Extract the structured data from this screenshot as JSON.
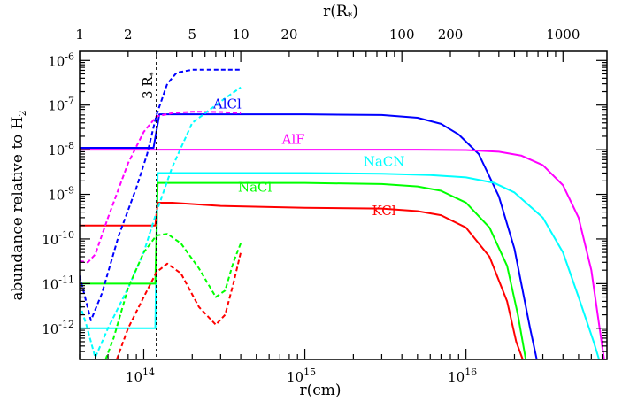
{
  "chart_data": {
    "type": "line",
    "title": "",
    "xlabel": "r(cm)",
    "top_xlabel": "r(R",
    "top_xlabel_sub": "*",
    "top_xlabel_close": ")",
    "ylabel": "abundance relative to H",
    "ylabel_sub": "2",
    "x_scale": "log",
    "y_scale": "log",
    "xlim": [
      40000000000000.0,
      7.5e+16
    ],
    "ylim": [
      2e-13,
      1.6e-06
    ],
    "grid": false,
    "legend": "inline labels next to curves",
    "x_ticks": [
      {
        "base": "10",
        "exp": "14",
        "value": 100000000000000.0
      },
      {
        "base": "10",
        "exp": "15",
        "value": 1000000000000000.0
      },
      {
        "base": "10",
        "exp": "16",
        "value": 1e+16
      }
    ],
    "top_ticks": [
      {
        "label": "1",
        "value": 1
      },
      {
        "label": "2",
        "value": 2
      },
      {
        "label": "5",
        "value": 5
      },
      {
        "label": "10",
        "value": 10
      },
      {
        "label": "20",
        "value": 20
      },
      {
        "label": "100",
        "value": 100
      },
      {
        "label": "200",
        "value": 200
      },
      {
        "label": "1000",
        "value": 1000
      }
    ],
    "y_ticks": [
      {
        "base": "10",
        "exp": "-12",
        "value": 1e-12
      },
      {
        "base": "10",
        "exp": "-11",
        "value": 1e-11
      },
      {
        "base": "10",
        "exp": "-10",
        "value": 1e-10
      },
      {
        "base": "10",
        "exp": "-9",
        "value": 1e-09
      },
      {
        "base": "10",
        "exp": "-8",
        "value": 1e-08
      },
      {
        "base": "10",
        "exp": "-7",
        "value": 1e-07
      },
      {
        "base": "10",
        "exp": "-6",
        "value": 1e-06
      }
    ],
    "annotation": {
      "text": "3 R",
      "sub": "*",
      "x": 120000000000000.0
    },
    "series": [
      {
        "name": "AlCl",
        "color": "#0000ff",
        "style": "solid",
        "label_at": [
          330000000000000.0,
          8.5e-08
        ],
        "x": [
          40000000000000.0,
          115000000000000.0,
          125000000000000.0,
          300000000000000.0,
          1000000000000000.0,
          3000000000000000.0,
          5000000000000000.0,
          7000000000000000.0,
          9000000000000000.0,
          1.2e+16,
          1.6e+16,
          2e+16,
          2.5e+16,
          2.75e+16
        ],
        "y": [
          1.1e-08,
          1.1e-08,
          6.2e-08,
          6.2e-08,
          6.2e-08,
          6e-08,
          5.2e-08,
          3.8e-08,
          2.2e-08,
          8e-09,
          9e-10,
          6e-11,
          1e-12,
          2e-13
        ]
      },
      {
        "name": "AlF",
        "color": "#ff00ff",
        "style": "solid",
        "label_at": [
          850000000000000.0,
          1.35e-08
        ],
        "x": [
          40000000000000.0,
          100000000000000.0,
          300000000000000.0,
          1000000000000000.0,
          5000000000000000.0,
          1e+16,
          1.6e+16,
          2.2e+16,
          3e+16,
          4e+16,
          5e+16,
          6e+16,
          7.2e+16
        ],
        "y": [
          1e-08,
          1e-08,
          1e-08,
          1e-08,
          1e-08,
          9.8e-09,
          9e-09,
          7.4e-09,
          4.5e-09,
          1.6e-09,
          3e-10,
          2e-11,
          2e-13
        ]
      },
      {
        "name": "NaCN",
        "color": "#00ffff",
        "style": "solid",
        "label_at": [
          3100000000000000.0,
          4.3e-09
        ],
        "x": [
          40000000000000.0,
          118000000000000.0,
          122000000000000.0,
          300000000000000.0,
          1000000000000000.0,
          3000000000000000.0,
          6000000000000000.0,
          1e+16,
          1.5e+16,
          2e+16,
          3e+16,
          4e+16,
          5e+16,
          6.2e+16,
          6.7e+16
        ],
        "y": [
          1e-12,
          1e-12,
          3e-09,
          3e-09,
          3e-09,
          2.9e-09,
          2.7e-09,
          2.4e-09,
          1.8e-09,
          1.1e-09,
          3e-10,
          5e-11,
          5e-12,
          5e-13,
          2e-13
        ]
      },
      {
        "name": "NaCl",
        "color": "#00ff00",
        "style": "solid",
        "label_at": [
          490000000000000.0,
          1.15e-09
        ],
        "x": [
          40000000000000.0,
          118000000000000.0,
          122000000000000.0,
          300000000000000.0,
          1000000000000000.0,
          3000000000000000.0,
          5000000000000000.0,
          7000000000000000.0,
          1e+16,
          1.4e+16,
          1.8e+16,
          2.1e+16,
          2.35e+16
        ],
        "y": [
          1e-11,
          1e-11,
          1.8e-09,
          1.8e-09,
          1.8e-09,
          1.7e-09,
          1.5e-09,
          1.2e-09,
          6.5e-10,
          1.8e-10,
          2.5e-11,
          2e-12,
          2e-13
        ]
      },
      {
        "name": "KCl",
        "color": "#ff0000",
        "style": "solid",
        "label_at": [
          3100000000000000.0,
          3.4e-10
        ],
        "x": [
          40000000000000.0,
          118000000000000.0,
          122000000000000.0,
          150000000000000.0,
          300000000000000.0,
          1000000000000000.0,
          3000000000000000.0,
          5000000000000000.0,
          7000000000000000.0,
          1e+16,
          1.4e+16,
          1.8e+16,
          2.05e+16,
          2.25e+16
        ],
        "y": [
          2e-10,
          2e-10,
          6.5e-10,
          6.5e-10,
          5.5e-10,
          5e-10,
          4.8e-10,
          4.2e-10,
          3.4e-10,
          1.8e-10,
          4e-11,
          4e-12,
          5e-13,
          2e-13
        ]
      },
      {
        "name": "",
        "color": "#0000ff",
        "style": "dashed",
        "x": [
          40000000000000.0,
          47000000000000.0,
          55000000000000.0,
          70000000000000.0,
          90000000000000.0,
          105000000000000.0,
          120000000000000.0,
          140000000000000.0,
          160000000000000.0,
          200000000000000.0,
          400000000000000.0
        ],
        "y": [
          1.5e-11,
          1.5e-12,
          6e-12,
          1.2e-10,
          1.4e-09,
          8e-09,
          6e-08,
          3e-07,
          5.3e-07,
          6.2e-07,
          6.2e-07
        ]
      },
      {
        "name": "",
        "color": "#ff00ff",
        "style": "dashed",
        "x": [
          40000000000000.0,
          45000000000000.0,
          50000000000000.0,
          60000000000000.0,
          80000000000000.0,
          100000000000000.0,
          120000000000000.0,
          150000000000000.0,
          200000000000000.0,
          300000000000000.0,
          400000000000000.0
        ],
        "y": [
          3.2e-11,
          3e-11,
          4.5e-11,
          3e-10,
          5e-09,
          2.5e-08,
          5.6e-08,
          6.6e-08,
          7.1e-08,
          7e-08,
          6.6e-08
        ]
      },
      {
        "name": "",
        "color": "#00ffff",
        "style": "dashed",
        "x": [
          40000000000000.0,
          44000000000000.0,
          50000000000000.0,
          60000000000000.0,
          80000000000000.0,
          100000000000000.0,
          120000000000000.0,
          150000000000000.0,
          200000000000000.0,
          300000000000000.0,
          400000000000000.0
        ],
        "y": [
          3.5e-12,
          1.2e-12,
          2.2e-13,
          1e-12,
          8e-12,
          5e-11,
          4e-10,
          4e-09,
          4e-08,
          1.2e-07,
          2.5e-07
        ]
      },
      {
        "name": "",
        "color": "#00ff00",
        "style": "dashed",
        "x": [
          58000000000000.0,
          65000000000000.0,
          80000000000000.0,
          100000000000000.0,
          120000000000000.0,
          140000000000000.0,
          170000000000000.0,
          220000000000000.0,
          280000000000000.0,
          320000000000000.0,
          360000000000000.0,
          400000000000000.0
        ],
        "y": [
          2e-13,
          6e-13,
          8e-12,
          5e-11,
          1.2e-10,
          1.3e-10,
          8e-11,
          2.2e-11,
          5e-12,
          7e-12,
          3e-11,
          8e-11
        ]
      },
      {
        "name": "",
        "color": "#ff0000",
        "style": "dashed",
        "x": [
          68000000000000.0,
          80000000000000.0,
          100000000000000.0,
          120000000000000.0,
          140000000000000.0,
          170000000000000.0,
          220000000000000.0,
          280000000000000.0,
          320000000000000.0,
          360000000000000.0,
          400000000000000.0
        ],
        "y": [
          2e-13,
          1e-12,
          5e-12,
          1.8e-11,
          2.8e-11,
          1.7e-11,
          3e-12,
          1.2e-12,
          2e-12,
          1e-11,
          5e-11
        ]
      }
    ]
  }
}
